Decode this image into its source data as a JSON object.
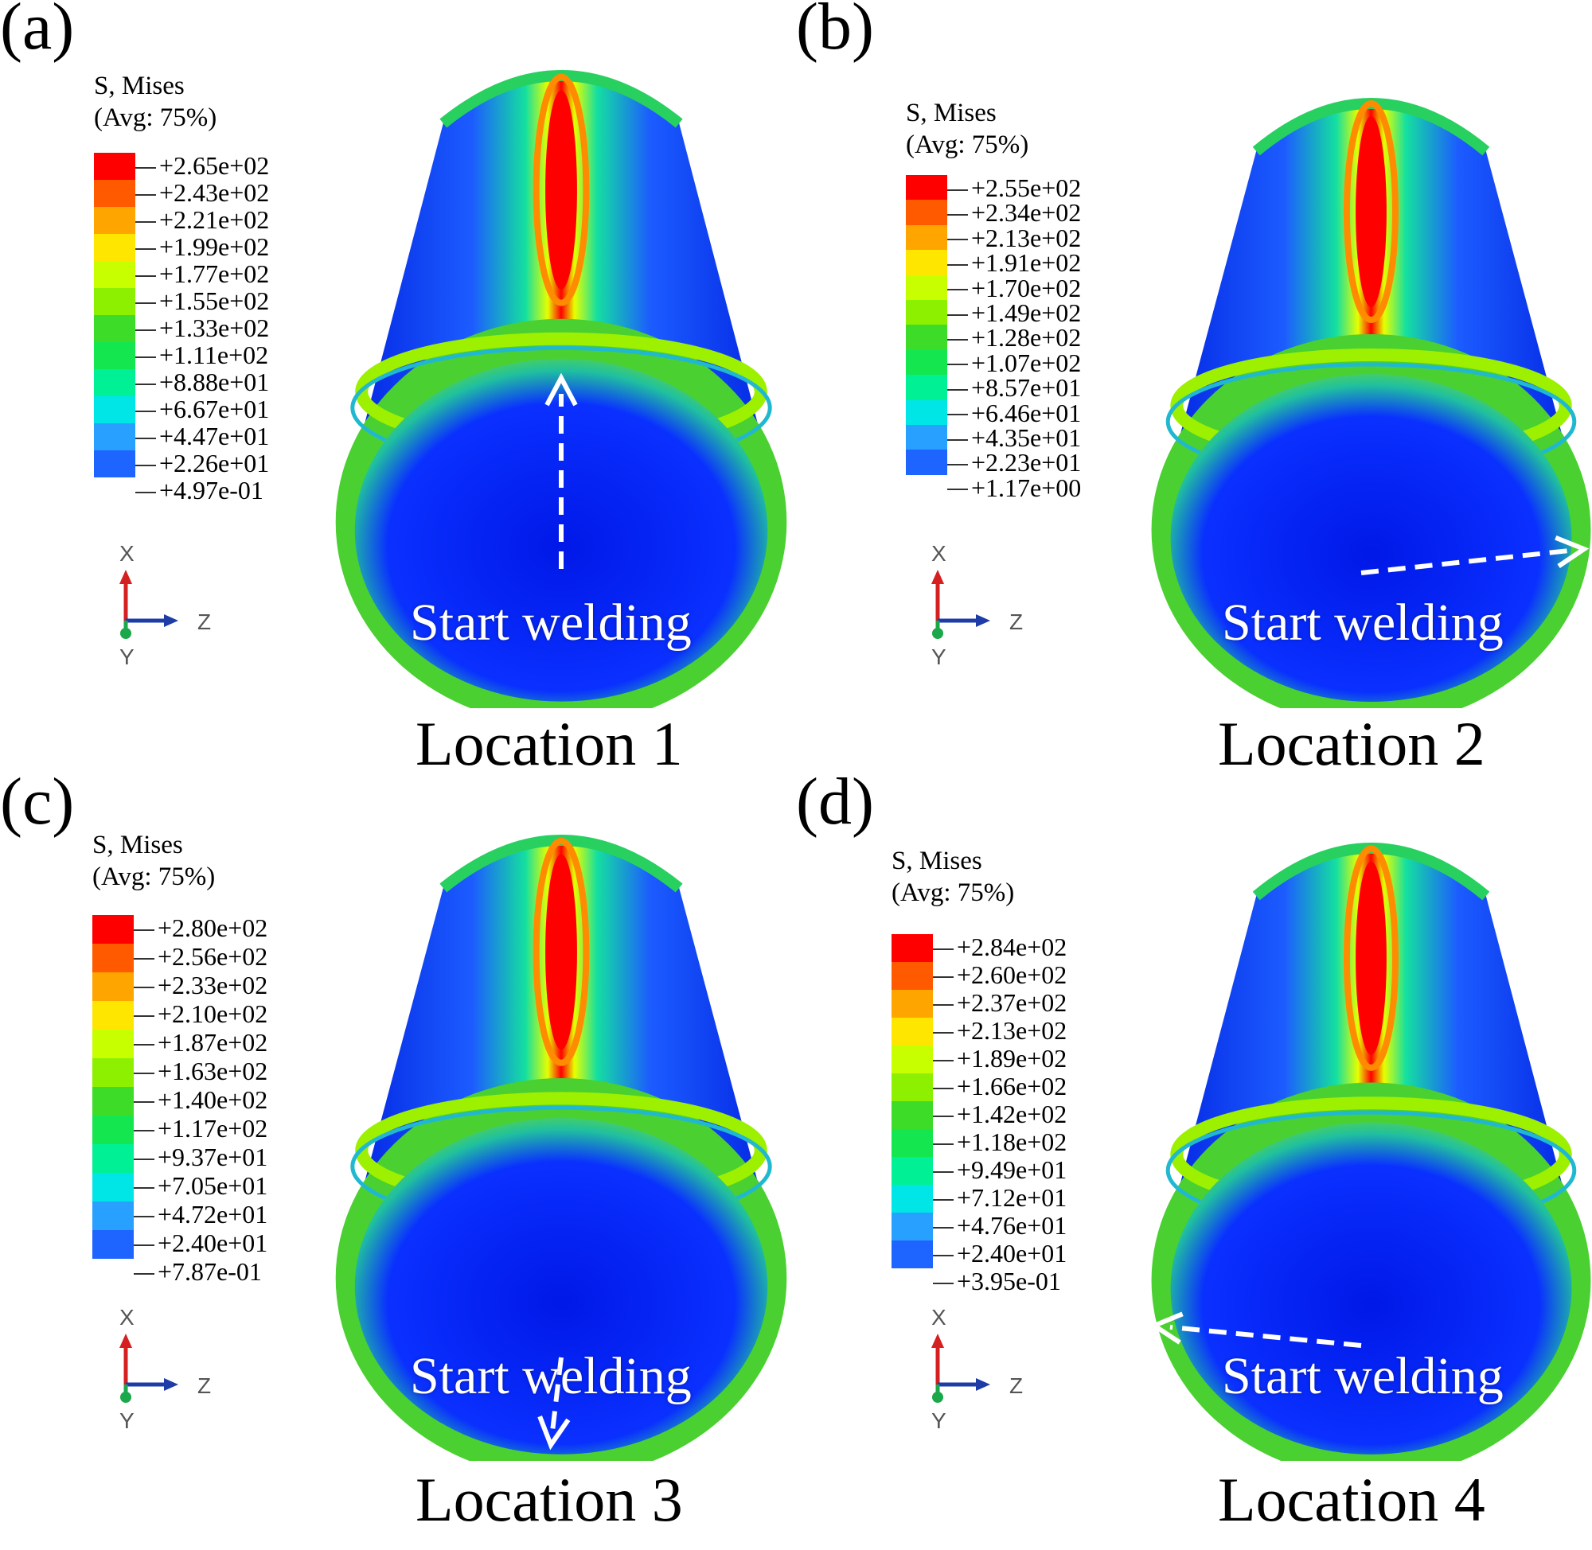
{
  "panels": [
    {
      "label": "(a)",
      "legend_title": [
        "S, Mises",
        "(Avg: 75%)"
      ],
      "ticks": [
        "+2.65e+02",
        "+2.43e+02",
        "+2.21e+02",
        "+1.99e+02",
        "+1.77e+02",
        "+1.55e+02",
        "+1.33e+02",
        "+1.11e+02",
        "+8.88e+01",
        "+6.67e+01",
        "+4.47e+01",
        "+2.26e+01",
        "+4.97e-01"
      ],
      "triad": {
        "x": "X",
        "y": "Y",
        "z": "Z"
      },
      "start_text": "Start welding",
      "location": "Location 1"
    },
    {
      "label": "(b)",
      "legend_title": [
        "S, Mises",
        "(Avg: 75%)"
      ],
      "ticks": [
        "+2.55e+02",
        "+2.34e+02",
        "+2.13e+02",
        "+1.91e+02",
        "+1.70e+02",
        "+1.49e+02",
        "+1.28e+02",
        "+1.07e+02",
        "+8.57e+01",
        "+6.46e+01",
        "+4.35e+01",
        "+2.23e+01",
        "+1.17e+00"
      ],
      "triad": {
        "x": "X",
        "y": "Y",
        "z": "Z"
      },
      "start_text": "Start welding",
      "location": "Location 2"
    },
    {
      "label": "(c)",
      "legend_title": [
        "S, Mises",
        "(Avg: 75%)"
      ],
      "ticks": [
        "+2.80e+02",
        "+2.56e+02",
        "+2.33e+02",
        "+2.10e+02",
        "+1.87e+02",
        "+1.63e+02",
        "+1.40e+02",
        "+1.17e+02",
        "+9.37e+01",
        "+7.05e+01",
        "+4.72e+01",
        "+2.40e+01",
        "+7.87e-01"
      ],
      "triad": {
        "x": "X",
        "y": "Y",
        "z": "Z"
      },
      "start_text": "Start welding",
      "location": "Location 3"
    },
    {
      "label": "(d)",
      "legend_title": [
        "S, Mises",
        "(Avg: 75%)"
      ],
      "ticks": [
        "+2.84e+02",
        "+2.60e+02",
        "+2.37e+02",
        "+2.13e+02",
        "+1.89e+02",
        "+1.66e+02",
        "+1.42e+02",
        "+1.18e+02",
        "+9.49e+01",
        "+7.12e+01",
        "+4.76e+01",
        "+2.40e+01",
        "+3.95e-01"
      ],
      "triad": {
        "x": "X",
        "y": "Y",
        "z": "Z"
      },
      "start_text": "Start welding",
      "location": "Location 4"
    }
  ],
  "colormap": [
    "#ff0000",
    "#ff5a00",
    "#ffa500",
    "#ffe600",
    "#c8ff00",
    "#8cf000",
    "#3cdc28",
    "#14e650",
    "#00f096",
    "#00e6e6",
    "#28a0ff",
    "#1e64ff",
    "#0000ff"
  ]
}
